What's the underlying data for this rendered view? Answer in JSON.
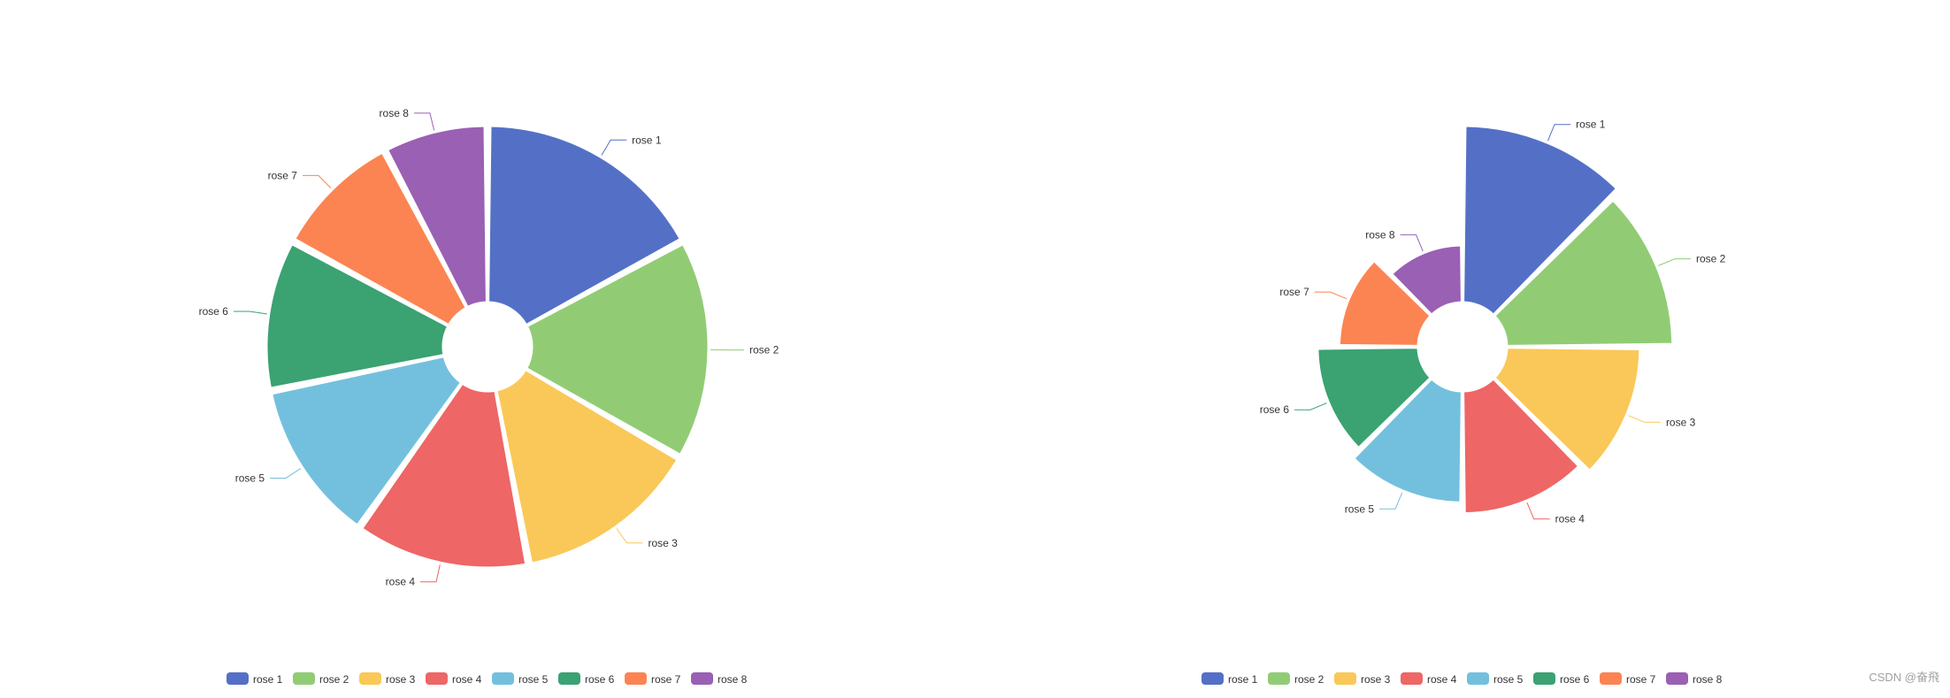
{
  "chart_data": [
    {
      "type": "pie",
      "rose_type": "radius",
      "categories": [
        "rose 1",
        "rose 2",
        "rose 3",
        "rose 4",
        "rose 5",
        "rose 6",
        "rose 7",
        "rose 8"
      ],
      "values": [
        40,
        38,
        32,
        30,
        28,
        26,
        22,
        18
      ],
      "legend": {
        "position": "bottom",
        "entries": [
          "rose 1",
          "rose 2",
          "rose 3",
          "rose 4",
          "rose 5",
          "rose 6",
          "rose 7",
          "rose 8"
        ]
      }
    },
    {
      "type": "pie",
      "rose_type": "area",
      "categories": [
        "rose 1",
        "rose 2",
        "rose 3",
        "rose 4",
        "rose 5",
        "rose 6",
        "rose 7",
        "rose 8"
      ],
      "values": [
        40,
        38,
        32,
        30,
        28,
        26,
        22,
        18
      ],
      "legend": {
        "position": "bottom",
        "entries": [
          "rose 1",
          "rose 2",
          "rose 3",
          "rose 4",
          "rose 5",
          "rose 6",
          "rose 7",
          "rose 8"
        ]
      }
    }
  ],
  "colors": [
    "#5470c6",
    "#91cc75",
    "#fac858",
    "#ee6666",
    "#73c0de",
    "#3ba272",
    "#fc8452",
    "#9a60b4"
  ],
  "watermark": "CSDN @奋飛"
}
